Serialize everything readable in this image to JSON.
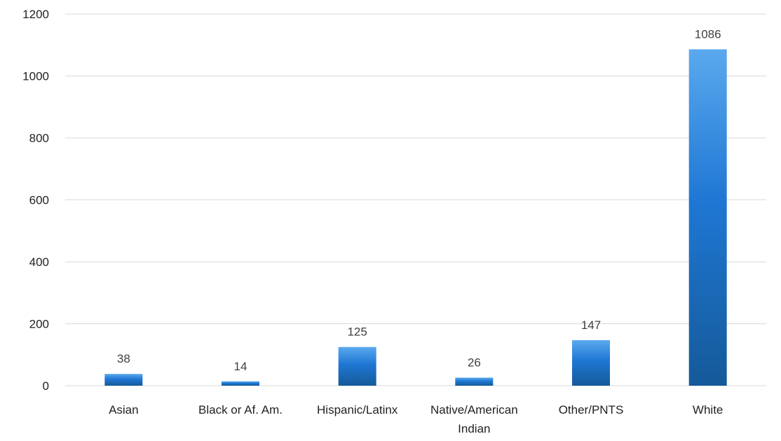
{
  "chart_data": {
    "type": "bar",
    "title": "",
    "xlabel": "",
    "ylabel": "",
    "categories": [
      "Asian",
      "Black or Af. Am.",
      "Hispanic/Latinx",
      "Native/American Indian",
      "Other/PNTS",
      "White"
    ],
    "category_lines": [
      [
        "Asian"
      ],
      [
        "Black or Af. Am."
      ],
      [
        "Hispanic/Latinx"
      ],
      [
        "Native/American",
        "Indian"
      ],
      [
        "Other/PNTS"
      ],
      [
        "White"
      ]
    ],
    "values": [
      38,
      14,
      125,
      26,
      147,
      1086
    ],
    "data_labels": [
      "38",
      "14",
      "125",
      "26",
      "147",
      "1086"
    ],
    "ylim": [
      0,
      1200
    ],
    "yticks": [
      0,
      200,
      400,
      600,
      800,
      1000,
      1200
    ],
    "grid": true,
    "legend": "none",
    "colors": {
      "bar_top": "#5aa9ee",
      "bar_mid": "#1f77d4",
      "bar_bottom": "#155a99",
      "gridline": "#d9d9d9",
      "text": "#222222",
      "data_label": "#404040"
    }
  }
}
